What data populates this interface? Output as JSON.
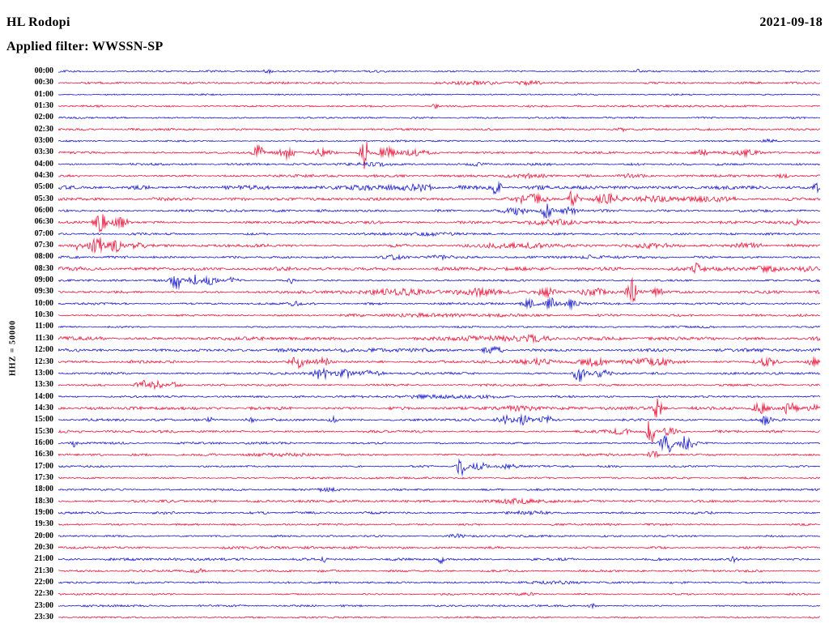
{
  "header": {
    "station": "HL Rodopi",
    "date": "2021-09-18",
    "filter": "Applied filter: WWSSN-SP"
  },
  "axis": {
    "left_label": "HHZ = 50000"
  },
  "colors": {
    "red": "#e8173c",
    "blue": "#1818cd",
    "background": "#ffffff",
    "text": "#000000"
  },
  "chart_data": {
    "type": "line",
    "subtype": "helicorder-seismogram",
    "title": "HL Rodopi 2021-09-18 — WWSSN-SP filtered helicorder",
    "row_duration_minutes": 30,
    "start_time": "00:00",
    "end_time": "23:30",
    "legend": "alternating blue/red 30-minute traces",
    "events_format": "[x_fraction_of_row, peak_amplitude_px, gaussian_sigma_fraction]",
    "rows": [
      {
        "time": "00:00",
        "color": "blue",
        "noise": 0.9,
        "events": [
          [
            0.275,
            3,
            0.005
          ],
          [
            0.76,
            1.8,
            0.004
          ]
        ]
      },
      {
        "time": "00:30",
        "color": "red",
        "noise": 1.0,
        "events": [
          [
            0.55,
            1.6,
            0.03
          ],
          [
            0.62,
            2,
            0.015
          ]
        ]
      },
      {
        "time": "01:00",
        "color": "blue",
        "noise": 0.8,
        "events": []
      },
      {
        "time": "01:30",
        "color": "red",
        "noise": 0.9,
        "events": [
          [
            0.493,
            2.6,
            0.004
          ]
        ]
      },
      {
        "time": "02:00",
        "color": "blue",
        "noise": 0.8,
        "events": []
      },
      {
        "time": "02:30",
        "color": "red",
        "noise": 0.9,
        "events": [
          [
            0.74,
            2.2,
            0.006
          ]
        ]
      },
      {
        "time": "03:00",
        "color": "blue",
        "noise": 0.8,
        "events": [
          [
            0.93,
            1.6,
            0.01
          ]
        ]
      },
      {
        "time": "03:30",
        "color": "red",
        "noise": 1.1,
        "events": [
          [
            0.262,
            10,
            0.007
          ],
          [
            0.3,
            6,
            0.01
          ],
          [
            0.345,
            3.5,
            0.012
          ],
          [
            0.401,
            22,
            0.005
          ],
          [
            0.43,
            6,
            0.012
          ],
          [
            0.47,
            3.5,
            0.02
          ],
          [
            0.845,
            2.5,
            0.01
          ],
          [
            0.9,
            3,
            0.018
          ]
        ]
      },
      {
        "time": "04:00",
        "color": "blue",
        "noise": 1.0,
        "events": [
          [
            0.42,
            1.6,
            0.03
          ],
          [
            0.55,
            1.6,
            0.02
          ]
        ]
      },
      {
        "time": "04:30",
        "color": "red",
        "noise": 1.2,
        "events": [
          [
            0.62,
            2,
            0.03
          ],
          [
            0.75,
            2,
            0.02
          ],
          [
            0.95,
            2.2,
            0.01
          ]
        ]
      },
      {
        "time": "05:00",
        "color": "blue",
        "noise": 1.8,
        "events": [
          [
            0.4,
            2.5,
            0.03
          ],
          [
            0.47,
            2.5,
            0.02
          ],
          [
            0.575,
            14,
            0.004
          ],
          [
            0.995,
            6,
            0.004
          ]
        ]
      },
      {
        "time": "05:30",
        "color": "red",
        "noise": 1.4,
        "events": [
          [
            0.62,
            5,
            0.02
          ],
          [
            0.675,
            11,
            0.007
          ],
          [
            0.72,
            5,
            0.018
          ],
          [
            0.78,
            4,
            0.02
          ],
          [
            0.85,
            2.5,
            0.03
          ]
        ]
      },
      {
        "time": "06:00",
        "color": "blue",
        "noise": 1.1,
        "events": [
          [
            0.6,
            4,
            0.015
          ],
          [
            0.64,
            9,
            0.007
          ],
          [
            0.67,
            4,
            0.012
          ],
          [
            0.93,
            2.5,
            0.006
          ]
        ]
      },
      {
        "time": "06:30",
        "color": "red",
        "noise": 1.2,
        "events": [
          [
            0.055,
            13,
            0.007
          ],
          [
            0.082,
            5,
            0.01
          ],
          [
            0.65,
            2.5,
            0.04
          ],
          [
            0.97,
            2,
            0.01
          ]
        ]
      },
      {
        "time": "07:00",
        "color": "blue",
        "noise": 1.0,
        "events": [
          [
            0.5,
            1.5,
            0.05
          ]
        ]
      },
      {
        "time": "07:30",
        "color": "red",
        "noise": 1.3,
        "events": [
          [
            0.025,
            5,
            0.006
          ],
          [
            0.05,
            16,
            0.007
          ],
          [
            0.075,
            8,
            0.008
          ],
          [
            0.105,
            3.5,
            0.012
          ],
          [
            0.6,
            2.5,
            0.05
          ],
          [
            0.78,
            2.5,
            0.03
          ],
          [
            0.9,
            2,
            0.02
          ]
        ]
      },
      {
        "time": "08:00",
        "color": "blue",
        "noise": 1.1,
        "events": [
          [
            0.44,
            2.6,
            0.02
          ],
          [
            0.5,
            2,
            0.02
          ],
          [
            0.7,
            2,
            0.015
          ]
        ]
      },
      {
        "time": "08:30",
        "color": "red",
        "noise": 1.7,
        "events": [
          [
            0.84,
            7,
            0.006
          ],
          [
            0.93,
            3,
            0.02
          ],
          [
            0.975,
            2.5,
            0.01
          ]
        ]
      },
      {
        "time": "09:00",
        "color": "blue",
        "noise": 1.0,
        "events": [
          [
            0.155,
            12,
            0.006
          ],
          [
            0.178,
            6,
            0.006
          ],
          [
            0.198,
            5,
            0.008
          ],
          [
            0.228,
            3,
            0.01
          ],
          [
            0.306,
            3.5,
            0.006
          ]
        ]
      },
      {
        "time": "09:30",
        "color": "red",
        "noise": 1.4,
        "events": [
          [
            0.45,
            3,
            0.04
          ],
          [
            0.55,
            3,
            0.03
          ],
          [
            0.64,
            5,
            0.01
          ],
          [
            0.7,
            4,
            0.015
          ],
          [
            0.752,
            18,
            0.005
          ],
          [
            0.785,
            4,
            0.01
          ]
        ]
      },
      {
        "time": "10:00",
        "color": "blue",
        "noise": 1.0,
        "events": [
          [
            0.31,
            2,
            0.008
          ],
          [
            0.615,
            5,
            0.01
          ],
          [
            0.645,
            8,
            0.007
          ],
          [
            0.672,
            4.5,
            0.01
          ]
        ]
      },
      {
        "time": "10:30",
        "color": "red",
        "noise": 1.2,
        "events": [
          [
            0.5,
            1.5,
            0.08
          ]
        ]
      },
      {
        "time": "11:00",
        "color": "blue",
        "noise": 0.9,
        "events": []
      },
      {
        "time": "11:30",
        "color": "red",
        "noise": 1.6,
        "events": [
          [
            0.55,
            2,
            0.05
          ],
          [
            0.62,
            2,
            0.03
          ]
        ]
      },
      {
        "time": "12:00",
        "color": "blue",
        "noise": 1.6,
        "events": [
          [
            0.57,
            2.6,
            0.01
          ]
        ]
      },
      {
        "time": "12:30",
        "color": "red",
        "noise": 1.3,
        "events": [
          [
            0.315,
            7,
            0.01
          ],
          [
            0.348,
            4.5,
            0.01
          ],
          [
            0.62,
            2.5,
            0.03
          ],
          [
            0.7,
            5,
            0.018
          ],
          [
            0.78,
            3,
            0.03
          ],
          [
            0.93,
            5,
            0.013
          ],
          [
            0.99,
            4,
            0.008
          ]
        ]
      },
      {
        "time": "13:00",
        "color": "blue",
        "noise": 1.1,
        "events": [
          [
            0.345,
            8,
            0.009
          ],
          [
            0.376,
            5,
            0.012
          ],
          [
            0.41,
            3,
            0.015
          ],
          [
            0.683,
            11,
            0.007
          ],
          [
            0.712,
            3.5,
            0.01
          ]
        ]
      },
      {
        "time": "13:30",
        "color": "red",
        "noise": 1.0,
        "events": [
          [
            0.108,
            9,
            0.006
          ],
          [
            0.127,
            5,
            0.008
          ],
          [
            0.152,
            2.6,
            0.01
          ]
        ]
      },
      {
        "time": "14:00",
        "color": "blue",
        "noise": 1.0,
        "events": [
          [
            0.5,
            1.2,
            0.1
          ]
        ]
      },
      {
        "time": "14:30",
        "color": "red",
        "noise": 1.5,
        "events": [
          [
            0.6,
            2.5,
            0.02
          ],
          [
            0.786,
            18,
            0.004
          ],
          [
            0.92,
            7,
            0.01
          ],
          [
            0.958,
            6,
            0.01
          ],
          [
            0.99,
            5,
            0.006
          ]
        ]
      },
      {
        "time": "15:00",
        "color": "blue",
        "noise": 1.1,
        "events": [
          [
            0.197,
            5,
            0.005
          ],
          [
            0.252,
            5,
            0.005
          ],
          [
            0.36,
            4,
            0.005
          ],
          [
            0.585,
            5,
            0.012
          ],
          [
            0.612,
            8,
            0.007
          ],
          [
            0.64,
            4,
            0.01
          ],
          [
            0.928,
            6,
            0.007
          ]
        ]
      },
      {
        "time": "15:30",
        "color": "red",
        "noise": 1.2,
        "events": [
          [
            0.74,
            3,
            0.02
          ],
          [
            0.777,
            22,
            0.004
          ],
          [
            0.8,
            4,
            0.01
          ]
        ]
      },
      {
        "time": "16:00",
        "color": "blue",
        "noise": 1.0,
        "events": [
          [
            0.02,
            4.5,
            0.004
          ],
          [
            0.798,
            15,
            0.008
          ],
          [
            0.825,
            10,
            0.009
          ]
        ]
      },
      {
        "time": "16:30",
        "color": "red",
        "noise": 1.0,
        "events": [
          [
            0.3,
            1.5,
            0.05
          ],
          [
            0.78,
            6,
            0.006
          ]
        ]
      },
      {
        "time": "17:00",
        "color": "blue",
        "noise": 0.9,
        "events": [
          [
            0.528,
            11,
            0.006
          ],
          [
            0.552,
            5,
            0.01
          ],
          [
            0.59,
            2.5,
            0.015
          ]
        ]
      },
      {
        "time": "17:30",
        "color": "red",
        "noise": 0.9,
        "events": []
      },
      {
        "time": "18:00",
        "color": "blue",
        "noise": 0.9,
        "events": [
          [
            0.35,
            1.5,
            0.02
          ]
        ]
      },
      {
        "time": "18:30",
        "color": "red",
        "noise": 1.1,
        "events": [
          [
            0.6,
            1.8,
            0.05
          ]
        ]
      },
      {
        "time": "19:00",
        "color": "blue",
        "noise": 1.1,
        "events": [
          [
            0.62,
            2,
            0.03
          ]
        ]
      },
      {
        "time": "19:30",
        "color": "red",
        "noise": 0.9,
        "events": []
      },
      {
        "time": "20:00",
        "color": "blue",
        "noise": 0.9,
        "events": [
          [
            0.52,
            1.8,
            0.01
          ]
        ]
      },
      {
        "time": "20:30",
        "color": "red",
        "noise": 1.2,
        "events": []
      },
      {
        "time": "21:00",
        "color": "blue",
        "noise": 1.2,
        "events": [
          [
            0.347,
            4,
            0.004
          ],
          [
            0.502,
            4,
            0.004
          ],
          [
            0.885,
            3.5,
            0.005
          ]
        ]
      },
      {
        "time": "21:30",
        "color": "red",
        "noise": 1.0,
        "events": [
          [
            0.185,
            2.6,
            0.008
          ]
        ]
      },
      {
        "time": "22:00",
        "color": "blue",
        "noise": 0.9,
        "events": [
          [
            0.65,
            1.5,
            0.04
          ]
        ]
      },
      {
        "time": "22:30",
        "color": "red",
        "noise": 0.9,
        "events": [
          [
            0.62,
            1.8,
            0.008
          ]
        ]
      },
      {
        "time": "23:00",
        "color": "blue",
        "noise": 0.9,
        "events": [
          [
            0.7,
            2.4,
            0.008
          ]
        ]
      },
      {
        "time": "23:30",
        "color": "red",
        "noise": 0.8,
        "events": []
      }
    ]
  }
}
